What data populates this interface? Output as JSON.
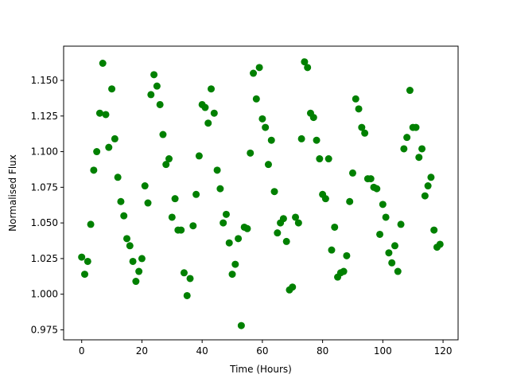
{
  "chart_data": {
    "type": "scatter",
    "title": "",
    "xlabel": "Time (Hours)",
    "ylabel": "Normalised Flux",
    "xlim": [
      -6,
      125
    ],
    "ylim": [
      0.968,
      1.174
    ],
    "x_ticks": [
      0,
      20,
      40,
      60,
      80,
      100,
      120
    ],
    "y_ticks": [
      0.975,
      1.0,
      1.025,
      1.05,
      1.075,
      1.1,
      1.125,
      1.15
    ],
    "x_tick_labels": [
      "0",
      "20",
      "40",
      "60",
      "80",
      "100",
      "120"
    ],
    "y_tick_labels": [
      "0.975",
      "1.000",
      "1.025",
      "1.050",
      "1.075",
      "1.100",
      "1.125",
      "1.150"
    ],
    "grid": false,
    "marker_color": "#008000",
    "series": [
      {
        "points": [
          [
            0,
            1.026
          ],
          [
            1,
            1.014
          ],
          [
            2,
            1.023
          ],
          [
            3,
            1.049
          ],
          [
            4,
            1.087
          ],
          [
            5,
            1.1
          ],
          [
            6,
            1.127
          ],
          [
            7,
            1.162
          ],
          [
            8,
            1.126
          ],
          [
            9,
            1.103
          ],
          [
            10,
            1.144
          ],
          [
            11,
            1.109
          ],
          [
            12,
            1.082
          ],
          [
            13,
            1.065
          ],
          [
            14,
            1.055
          ],
          [
            15,
            1.039
          ],
          [
            16,
            1.034
          ],
          [
            17,
            1.023
          ],
          [
            18,
            1.009
          ],
          [
            19,
            1.016
          ],
          [
            20,
            1.025
          ],
          [
            21,
            1.076
          ],
          [
            22,
            1.064
          ],
          [
            23,
            1.14
          ],
          [
            24,
            1.154
          ],
          [
            25,
            1.146
          ],
          [
            26,
            1.133
          ],
          [
            27,
            1.112
          ],
          [
            28,
            1.091
          ],
          [
            29,
            1.095
          ],
          [
            30,
            1.054
          ],
          [
            31,
            1.067
          ],
          [
            32,
            1.045
          ],
          [
            33,
            1.045
          ],
          [
            34,
            1.015
          ],
          [
            35,
            0.999
          ],
          [
            36,
            1.011
          ],
          [
            37,
            1.048
          ],
          [
            38,
            1.07
          ],
          [
            39,
            1.097
          ],
          [
            40,
            1.133
          ],
          [
            41,
            1.131
          ],
          [
            42,
            1.12
          ],
          [
            43,
            1.144
          ],
          [
            44,
            1.127
          ],
          [
            45,
            1.087
          ],
          [
            46,
            1.074
          ],
          [
            47,
            1.05
          ],
          [
            48,
            1.056
          ],
          [
            49,
            1.036
          ],
          [
            50,
            1.014
          ],
          [
            51,
            1.021
          ],
          [
            52,
            1.039
          ],
          [
            53,
            0.978
          ],
          [
            54,
            1.047
          ],
          [
            55,
            1.046
          ],
          [
            56,
            1.099
          ],
          [
            57,
            1.155
          ],
          [
            58,
            1.137
          ],
          [
            59,
            1.159
          ],
          [
            60,
            1.123
          ],
          [
            61,
            1.117
          ],
          [
            62,
            1.091
          ],
          [
            63,
            1.108
          ],
          [
            64,
            1.072
          ],
          [
            65,
            1.043
          ],
          [
            66,
            1.05
          ],
          [
            67,
            1.053
          ],
          [
            68,
            1.037
          ],
          [
            69,
            1.003
          ],
          [
            70,
            1.005
          ],
          [
            71,
            1.054
          ],
          [
            72,
            1.05
          ],
          [
            73,
            1.109
          ],
          [
            74,
            1.163
          ],
          [
            75,
            1.159
          ],
          [
            76,
            1.127
          ],
          [
            77,
            1.124
          ],
          [
            78,
            1.108
          ],
          [
            79,
            1.095
          ],
          [
            80,
            1.07
          ],
          [
            81,
            1.067
          ],
          [
            82,
            1.095
          ],
          [
            83,
            1.031
          ],
          [
            84,
            1.047
          ],
          [
            85,
            1.012
          ],
          [
            86,
            1.015
          ],
          [
            87,
            1.016
          ],
          [
            88,
            1.027
          ],
          [
            89,
            1.065
          ],
          [
            90,
            1.085
          ],
          [
            91,
            1.137
          ],
          [
            92,
            1.13
          ],
          [
            93,
            1.117
          ],
          [
            94,
            1.113
          ],
          [
            95,
            1.081
          ],
          [
            96,
            1.081
          ],
          [
            97,
            1.075
          ],
          [
            98,
            1.074
          ],
          [
            99,
            1.042
          ],
          [
            100,
            1.063
          ],
          [
            101,
            1.054
          ],
          [
            102,
            1.029
          ],
          [
            103,
            1.022
          ],
          [
            104,
            1.034
          ],
          [
            105,
            1.016
          ],
          [
            106,
            1.049
          ],
          [
            107,
            1.102
          ],
          [
            108,
            1.11
          ],
          [
            109,
            1.143
          ],
          [
            110,
            1.117
          ],
          [
            111,
            1.117
          ],
          [
            112,
            1.096
          ],
          [
            113,
            1.102
          ],
          [
            114,
            1.069
          ],
          [
            115,
            1.076
          ],
          [
            116,
            1.082
          ],
          [
            117,
            1.045
          ],
          [
            118,
            1.033
          ],
          [
            119,
            1.035
          ]
        ]
      }
    ]
  }
}
